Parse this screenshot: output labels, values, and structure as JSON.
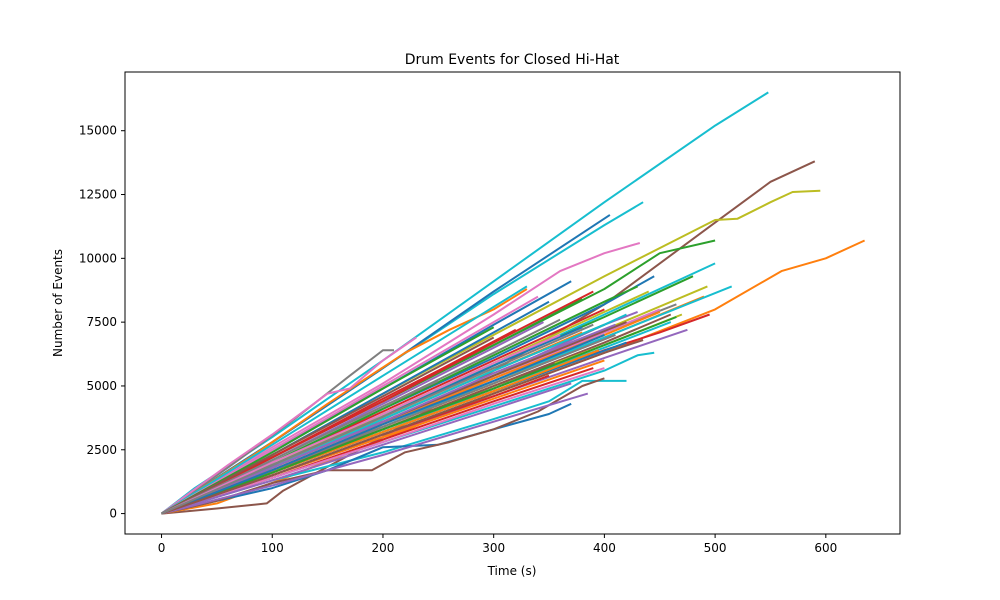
{
  "chart_data": {
    "type": "line",
    "title": "Drum Events for Closed Hi-Hat",
    "xlabel": "Time (s)",
    "ylabel": "Number of Events",
    "xlim": [
      -33,
      667
    ],
    "ylim": [
      -800,
      17300
    ],
    "xticks": [
      0,
      100,
      200,
      300,
      400,
      500,
      600
    ],
    "yticks": [
      0,
      2500,
      5000,
      7500,
      10000,
      12500,
      15000
    ],
    "grid": false,
    "legend": "none",
    "series": [
      {
        "color": "#17becf",
        "x": [
          0,
          30,
          100,
          200,
          300,
          400,
          500,
          548
        ],
        "y": [
          0,
          1000,
          3000,
          6000,
          9100,
          12200,
          15200,
          16500
        ]
      },
      {
        "color": "#8c564b",
        "x": [
          0,
          50,
          95,
          110,
          200,
          300,
          400,
          500,
          550,
          590
        ],
        "y": [
          0,
          200,
          400,
          900,
          3000,
          5600,
          8200,
          11400,
          13000,
          13800
        ]
      },
      {
        "color": "#bcbd22",
        "x": [
          0,
          100,
          200,
          300,
          400,
          500,
          520,
          550,
          570,
          595
        ],
        "y": [
          0,
          2300,
          4700,
          7000,
          9300,
          11500,
          11550,
          12200,
          12600,
          12650
        ]
      },
      {
        "color": "#ff7f0e",
        "x": [
          0,
          50,
          100,
          200,
          300,
          400,
          500,
          560,
          600,
          635
        ],
        "y": [
          0,
          400,
          1200,
          2900,
          4700,
          6300,
          8000,
          9500,
          10000,
          10700
        ]
      },
      {
        "color": "#2ca02c",
        "x": [
          0,
          100,
          200,
          300,
          400,
          450,
          500
        ],
        "y": [
          0,
          2200,
          4400,
          6600,
          8800,
          10200,
          10700
        ]
      },
      {
        "color": "#17becf",
        "x": [
          0,
          100,
          200,
          300,
          400,
          435
        ],
        "y": [
          0,
          2800,
          5700,
          8600,
          11300,
          12200
        ]
      },
      {
        "color": "#1f77b4",
        "x": [
          0,
          100,
          200,
          300,
          405
        ],
        "y": [
          0,
          2800,
          5700,
          8700,
          11700
        ]
      },
      {
        "color": "#e377c2",
        "x": [
          0,
          100,
          200,
          300,
          360,
          400,
          432
        ],
        "y": [
          0,
          2600,
          5100,
          7800,
          9500,
          10200,
          10600
        ]
      },
      {
        "color": "#ff7f0e",
        "x": [
          0,
          80,
          150,
          220,
          260,
          300,
          330
        ],
        "y": [
          0,
          2200,
          4300,
          6300,
          7200,
          8000,
          8800
        ]
      },
      {
        "color": "#7f7f7f",
        "x": [
          0,
          60,
          120,
          170,
          200,
          210
        ],
        "y": [
          0,
          1800,
          3700,
          5400,
          6400,
          6400
        ]
      },
      {
        "color": "#e377c2",
        "x": [
          0,
          60,
          100,
          150,
          170,
          200,
          230
        ],
        "y": [
          0,
          1900,
          3100,
          4700,
          4900,
          6000,
          6900
        ]
      },
      {
        "color": "#17becf",
        "x": [
          0,
          100,
          200,
          300,
          400,
          500
        ],
        "y": [
          0,
          1900,
          3900,
          5800,
          7800,
          9800
        ]
      },
      {
        "color": "#1f77b4",
        "x": [
          0,
          100,
          200,
          300,
          400,
          445
        ],
        "y": [
          0,
          2000,
          4100,
          6100,
          8200,
          9300
        ]
      },
      {
        "color": "#d62728",
        "x": [
          0,
          100,
          200,
          300,
          400,
          450,
          495
        ],
        "y": [
          0,
          1600,
          3200,
          4800,
          6400,
          7100,
          7800
        ]
      },
      {
        "color": "#9467bd",
        "x": [
          0,
          100,
          200,
          300,
          400,
          430
        ],
        "y": [
          0,
          1700,
          3500,
          5400,
          7400,
          7900
        ]
      },
      {
        "color": "#17becf",
        "x": [
          0,
          100,
          200,
          300,
          400,
          430,
          445
        ],
        "y": [
          0,
          1400,
          2800,
          4200,
          5600,
          6200,
          6300
        ]
      },
      {
        "color": "#17becf",
        "x": [
          0,
          100,
          200,
          300,
          350,
          380,
          420
        ],
        "y": [
          0,
          1300,
          2400,
          3700,
          4400,
          5200,
          5200
        ]
      },
      {
        "color": "#1f77b4",
        "x": [
          0,
          100,
          150,
          200,
          250,
          300,
          350,
          370
        ],
        "y": [
          0,
          1000,
          1700,
          2600,
          2700,
          3300,
          3900,
          4300
        ]
      },
      {
        "color": "#8c564b",
        "x": [
          0,
          50,
          100,
          150,
          190,
          220,
          260,
          300,
          340,
          380,
          400
        ],
        "y": [
          0,
          500,
          1200,
          1700,
          1700,
          2400,
          2800,
          3300,
          4000,
          5000,
          5300
        ]
      },
      {
        "color": "#9467bd",
        "x": [
          0,
          100,
          200,
          300,
          385
        ],
        "y": [
          0,
          1100,
          2300,
          3600,
          4700
        ]
      },
      {
        "color": "#2ca02c",
        "x": [
          0,
          100,
          200,
          300,
          400,
          480
        ],
        "y": [
          0,
          1900,
          3800,
          5800,
          7700,
          9300
        ]
      },
      {
        "color": "#bcbd22",
        "x": [
          0,
          100,
          200,
          300,
          400,
          493
        ],
        "y": [
          0,
          1800,
          3600,
          5400,
          7200,
          8900
        ]
      },
      {
        "color": "#ff7f0e",
        "x": [
          0,
          100,
          200,
          300,
          400,
          490
        ],
        "y": [
          0,
          1700,
          3400,
          5100,
          6900,
          8500
        ]
      },
      {
        "color": "#1f77b4",
        "x": [
          0,
          100,
          200,
          300,
          370
        ],
        "y": [
          0,
          2500,
          4900,
          7400,
          9100
        ]
      },
      {
        "color": "#2ca02c",
        "x": [
          0,
          100,
          200,
          300,
          380
        ],
        "y": [
          0,
          2200,
          4400,
          6600,
          8400
        ]
      },
      {
        "color": "#d62728",
        "x": [
          0,
          100,
          200,
          300,
          400
        ],
        "y": [
          0,
          2000,
          4000,
          6000,
          8000
        ]
      },
      {
        "color": "#8c564b",
        "x": [
          0,
          100,
          200,
          300,
          400,
          460
        ],
        "y": [
          0,
          1700,
          3300,
          5000,
          6700,
          7800
        ]
      },
      {
        "color": "#7f7f7f",
        "x": [
          0,
          100,
          200,
          300,
          400,
          465
        ],
        "y": [
          0,
          1800,
          3600,
          5300,
          7100,
          8200
        ]
      },
      {
        "color": "#bcbd22",
        "x": [
          0,
          100,
          200,
          300,
          400,
          470
        ],
        "y": [
          0,
          1600,
          3300,
          5000,
          6600,
          7800
        ]
      },
      {
        "color": "#17becf",
        "x": [
          0,
          100,
          200,
          300,
          400,
          515
        ],
        "y": [
          0,
          1700,
          3400,
          5200,
          6900,
          8900
        ]
      },
      {
        "color": "#9467bd",
        "x": [
          0,
          100,
          200,
          300,
          400,
          475
        ],
        "y": [
          0,
          1500,
          3000,
          4600,
          6100,
          7200
        ]
      },
      {
        "color": "#e377c2",
        "x": [
          0,
          100,
          200,
          300,
          400,
          450
        ],
        "y": [
          0,
          1700,
          3500,
          5300,
          7100,
          8000
        ]
      },
      {
        "color": "#ff7f0e",
        "x": [
          0,
          100,
          200,
          300,
          400
        ],
        "y": [
          0,
          1500,
          3000,
          4500,
          6000
        ]
      },
      {
        "color": "#2ca02c",
        "x": [
          0,
          100,
          200,
          300,
          400
        ],
        "y": [
          0,
          1800,
          3700,
          5600,
          7400
        ]
      },
      {
        "color": "#d62728",
        "x": [
          0,
          100,
          200,
          300,
          390
        ],
        "y": [
          0,
          1400,
          2900,
          4400,
          5700
        ]
      },
      {
        "color": "#1f77b4",
        "x": [
          0,
          100,
          200,
          300,
          350
        ],
        "y": [
          0,
          2300,
          4700,
          7100,
          8300
        ]
      },
      {
        "color": "#8c564b",
        "x": [
          0,
          100,
          200,
          300,
          355
        ],
        "y": [
          0,
          1700,
          3300,
          5000,
          5900
        ]
      },
      {
        "color": "#7f7f7f",
        "x": [
          0,
          100,
          200,
          300,
          360
        ],
        "y": [
          0,
          2100,
          4200,
          6300,
          7600
        ]
      },
      {
        "color": "#bcbd22",
        "x": [
          0,
          100,
          200,
          300
        ],
        "y": [
          0,
          1900,
          3800,
          5700
        ]
      },
      {
        "color": "#17becf",
        "x": [
          0,
          100,
          200,
          300,
          330
        ],
        "y": [
          0,
          2700,
          5400,
          8100,
          8900
        ]
      },
      {
        "color": "#e377c2",
        "x": [
          0,
          100,
          200,
          300,
          340
        ],
        "y": [
          0,
          2500,
          5000,
          7500,
          8500
        ]
      },
      {
        "color": "#9467bd",
        "x": [
          0,
          100,
          200,
          300,
          345
        ],
        "y": [
          0,
          2100,
          4300,
          6500,
          7500
        ]
      },
      {
        "color": "#ff7f0e",
        "x": [
          0,
          100,
          200,
          300,
          380
        ],
        "y": [
          0,
          1900,
          3700,
          5600,
          7100
        ]
      },
      {
        "color": "#2ca02c",
        "x": [
          0,
          100,
          200,
          250,
          300
        ],
        "y": [
          0,
          2400,
          4900,
          6100,
          7300
        ]
      },
      {
        "color": "#d62728",
        "x": [
          0,
          100,
          200,
          250,
          320
        ],
        "y": [
          0,
          2200,
          4500,
          5600,
          7200
        ]
      },
      {
        "color": "#1f77b4",
        "x": [
          0,
          100,
          200,
          300,
          420
        ],
        "y": [
          0,
          1600,
          3200,
          4800,
          6700
        ]
      },
      {
        "color": "#8c564b",
        "x": [
          0,
          100,
          200,
          300,
          420
        ],
        "y": [
          0,
          1800,
          3600,
          5400,
          7500
        ]
      },
      {
        "color": "#7f7f7f",
        "x": [
          0,
          100,
          200,
          300,
          410
        ],
        "y": [
          0,
          1700,
          3400,
          5100,
          7000
        ]
      },
      {
        "color": "#bcbd22",
        "x": [
          0,
          100,
          200,
          300,
          400,
          440
        ],
        "y": [
          0,
          1900,
          3900,
          5900,
          7900,
          8700
        ]
      },
      {
        "color": "#17becf",
        "x": [
          0,
          100,
          200,
          300,
          400,
          460
        ],
        "y": [
          0,
          1600,
          3200,
          4900,
          6500,
          7500
        ]
      },
      {
        "color": "#e377c2",
        "x": [
          0,
          100,
          200,
          300,
          400
        ],
        "y": [
          0,
          1400,
          2800,
          4300,
          5700
        ]
      },
      {
        "color": "#9467bd",
        "x": [
          0,
          100,
          200,
          300,
          370
        ],
        "y": [
          0,
          1300,
          2700,
          4100,
          5100
        ]
      },
      {
        "color": "#ff7f0e",
        "x": [
          0,
          100,
          200,
          300,
          395
        ],
        "y": [
          0,
          1600,
          3200,
          4800,
          6400
        ]
      },
      {
        "color": "#2ca02c",
        "x": [
          0,
          100,
          200,
          300,
          400,
          430
        ],
        "y": [
          0,
          2000,
          4100,
          6200,
          8300,
          8900
        ]
      },
      {
        "color": "#d62728",
        "x": [
          0,
          100,
          200,
          300,
          390
        ],
        "y": [
          0,
          2200,
          4400,
          6700,
          8700
        ]
      },
      {
        "color": "#1f77b4",
        "x": [
          0,
          100,
          200,
          300,
          380
        ],
        "y": [
          0,
          1900,
          3800,
          5800,
          7300
        ]
      },
      {
        "color": "#8c564b",
        "x": [
          0,
          100,
          200,
          300
        ],
        "y": [
          0,
          2300,
          4600,
          6900
        ]
      },
      {
        "color": "#7f7f7f",
        "x": [
          0,
          100,
          200,
          250
        ],
        "y": [
          0,
          2100,
          4200,
          5200
        ]
      },
      {
        "color": "#bcbd22",
        "x": [
          0,
          100,
          200,
          300,
          350
        ],
        "y": [
          0,
          1500,
          3100,
          4700,
          5500
        ]
      },
      {
        "color": "#17becf",
        "x": [
          0,
          100,
          200,
          300,
          400,
          420
        ],
        "y": [
          0,
          1800,
          3700,
          5600,
          7400,
          7800
        ]
      },
      {
        "color": "#e377c2",
        "x": [
          0,
          100,
          200,
          300,
          360
        ],
        "y": [
          0,
          2000,
          3900,
          5900,
          7000
        ]
      },
      {
        "color": "#9467bd",
        "x": [
          0,
          100,
          200,
          300,
          410
        ],
        "y": [
          0,
          1800,
          3600,
          5500,
          7400
        ]
      },
      {
        "color": "#ff7f0e",
        "x": [
          0,
          100,
          200,
          300,
          400,
          450
        ],
        "y": [
          0,
          1700,
          3500,
          5300,
          7000,
          7900
        ]
      },
      {
        "color": "#2ca02c",
        "x": [
          0,
          100,
          200,
          300,
          400,
          465
        ],
        "y": [
          0,
          1600,
          3300,
          4900,
          6600,
          7700
        ]
      },
      {
        "color": "#d62728",
        "x": [
          0,
          100,
          200,
          300,
          350
        ],
        "y": [
          0,
          1500,
          3100,
          4600,
          5400
        ]
      },
      {
        "color": "#1f77b4",
        "x": [
          0,
          100,
          200,
          300,
          400
        ],
        "y": [
          0,
          1700,
          3500,
          5200,
          7000
        ]
      },
      {
        "color": "#8c564b",
        "x": [
          0,
          100,
          200,
          300,
          400,
          435
        ],
        "y": [
          0,
          1500,
          3100,
          4700,
          6300,
          6800
        ]
      },
      {
        "color": "#7f7f7f",
        "x": [
          0,
          100,
          200,
          300,
          390
        ],
        "y": [
          0,
          1900,
          3800,
          5700,
          7400
        ]
      }
    ]
  }
}
